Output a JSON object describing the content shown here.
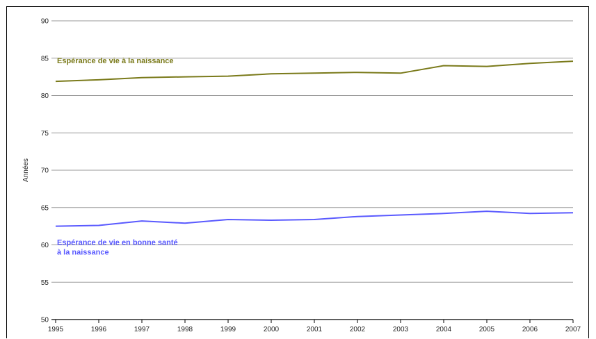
{
  "chart_data": {
    "type": "line",
    "title": "",
    "xlabel": "",
    "ylabel": "Années",
    "x": [
      "1995",
      "1996",
      "1997",
      "1998",
      "1999",
      "2000",
      "2001",
      "2002",
      "2003",
      "2004",
      "2005",
      "2006",
      "2007"
    ],
    "ylim": [
      50,
      90
    ],
    "yticks": [
      50,
      55,
      60,
      65,
      70,
      75,
      80,
      85,
      90
    ],
    "grid": true,
    "legend": "inline labels",
    "series": [
      {
        "name": "Espérance de vie à la naissance",
        "label_lines": [
          "Espérance de vie à la naissance"
        ],
        "color": "#7a7a1a",
        "values": [
          81.9,
          82.1,
          82.4,
          82.5,
          82.6,
          82.9,
          83.0,
          83.1,
          83.0,
          84.0,
          83.9,
          84.3,
          84.6
        ]
      },
      {
        "name": "Espérance de vie en bonne santé à la naissance",
        "label_lines": [
          "Espérance de vie en bonne santé",
          "à la naissance"
        ],
        "color": "#5a5aff",
        "values": [
          62.5,
          62.6,
          63.2,
          62.9,
          63.4,
          63.3,
          63.4,
          63.8,
          64.0,
          64.2,
          64.5,
          64.2,
          64.3
        ]
      }
    ]
  }
}
